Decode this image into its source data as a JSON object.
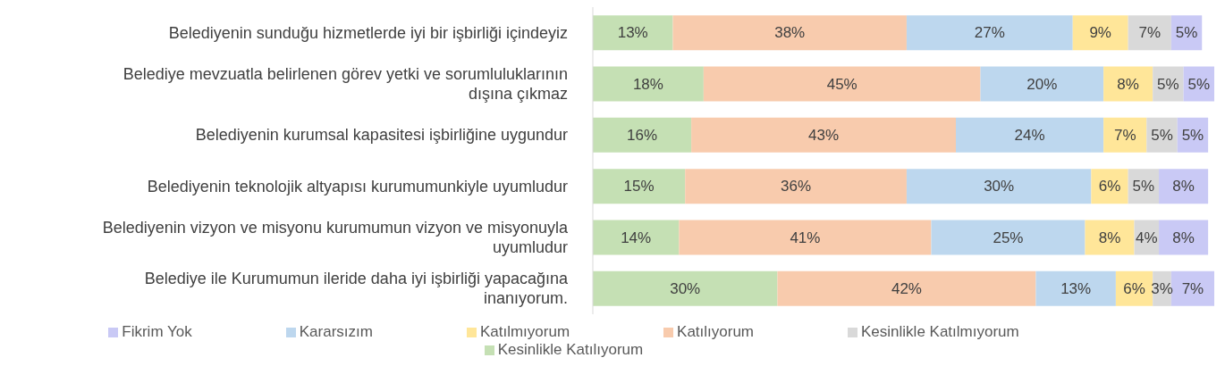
{
  "chart_data": {
    "type": "bar",
    "orientation": "horizontal",
    "stacked": true,
    "legend": "bottom",
    "categories": [
      "Belediyenin sunduğu hizmetlerde iyi bir işbirliği içindeyiz",
      "Belediye mevzuatla belirlenen görev yetki ve sorumluluklarının dışına çıkmaz",
      "Belediyenin kurumsal kapasitesi işbirliğine uygundur",
      "Belediyenin teknolojik altyapısı kurumumunkiyle uyumludur",
      "Belediyenin vizyon ve misyonu kurumumun vizyon ve misyonuyla uyumludur",
      "Belediye ile Kurumumun ileride daha iyi işbirliği yapacağına inanıyorum."
    ],
    "series": [
      {
        "name": "Kesinlikle Katılıyorum",
        "color": "#c5e0b4",
        "values": [
          13,
          18,
          16,
          15,
          14,
          30
        ],
        "value_labels": [
          "13%",
          "18%",
          "16%",
          "15%",
          "14%",
          "30%"
        ]
      },
      {
        "name": "Katılıyorum",
        "color": "#f8cbad",
        "values": [
          38,
          45,
          43,
          36,
          41,
          42
        ],
        "value_labels": [
          "38%",
          "45%",
          "43%",
          "36%",
          "41%",
          "42%"
        ]
      },
      {
        "name": "Kararsızım",
        "color": "#bdd7ee",
        "values": [
          27,
          20,
          24,
          30,
          25,
          13
        ],
        "value_labels": [
          "27%",
          "20%",
          "24%",
          "30%",
          "25%",
          "13%"
        ]
      },
      {
        "name": "Katılmıyorum",
        "color": "#ffe699",
        "values": [
          9,
          8,
          7,
          6,
          8,
          6
        ],
        "value_labels": [
          "9%",
          "8%",
          "7%",
          "6%",
          "8%",
          "6%"
        ]
      },
      {
        "name": "Kesinlikle Katılmıyorum",
        "color": "#d9d9d9",
        "values": [
          7,
          5,
          5,
          5,
          4,
          3
        ],
        "value_labels": [
          "7%",
          "5%",
          "5%",
          "5%",
          "4%",
          "3%"
        ]
      },
      {
        "name": "Fikrim Yok",
        "color": "#c9c9f5",
        "values": [
          5,
          5,
          5,
          8,
          8,
          7
        ],
        "value_labels": [
          "5%",
          "5%",
          "5%",
          "8%",
          "8%",
          "7%"
        ]
      }
    ]
  }
}
